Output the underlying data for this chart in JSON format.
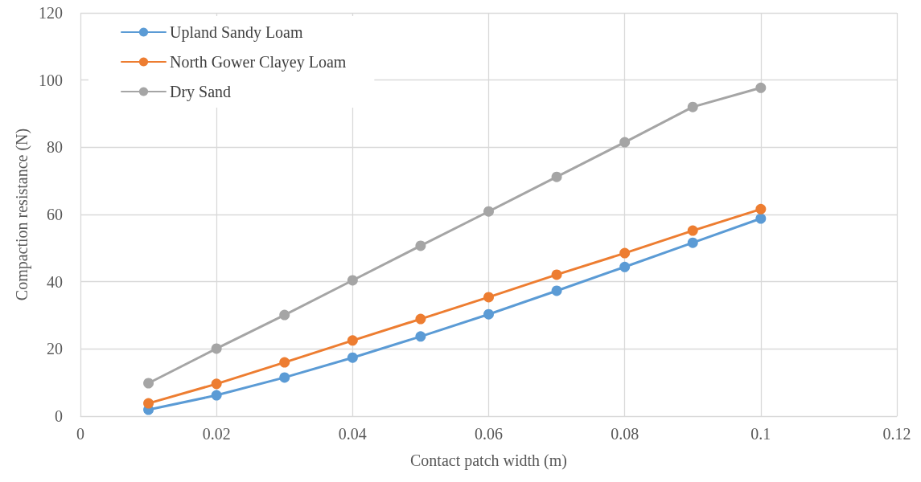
{
  "chart_data": {
    "type": "line",
    "xlabel": "Contact patch width (m)",
    "ylabel": "Compaction resistance (N)",
    "x": [
      0.01,
      0.02,
      0.03,
      0.04,
      0.05,
      0.06,
      0.07,
      0.08,
      0.09,
      0.1
    ],
    "series": [
      {
        "name": "Upland Sandy Loam",
        "color": "#5b9bd5",
        "values": [
          1.9,
          6.2,
          11.5,
          17.4,
          23.7,
          30.3,
          37.3,
          44.4,
          51.6,
          58.8
        ]
      },
      {
        "name": "North Gower Clayey Loam",
        "color": "#ed7d31",
        "values": [
          3.8,
          9.6,
          16.0,
          22.5,
          28.9,
          35.4,
          42.1,
          48.5,
          55.2,
          61.6
        ]
      },
      {
        "name": "Dry Sand",
        "color": "#a5a5a5",
        "values": [
          9.8,
          20.1,
          30.1,
          40.4,
          50.7,
          60.9,
          71.2,
          81.5,
          92.0,
          97.7
        ]
      }
    ],
    "xlim": [
      0,
      0.12
    ],
    "xticks": [
      0,
      0.02,
      0.04,
      0.06,
      0.08,
      0.1,
      0.12
    ],
    "ylim": [
      0,
      120
    ],
    "yticks": [
      0,
      20,
      40,
      60,
      80,
      100,
      120
    ],
    "grid": true,
    "legend": "top left",
    "marker": "circle",
    "line_style": "solid"
  }
}
